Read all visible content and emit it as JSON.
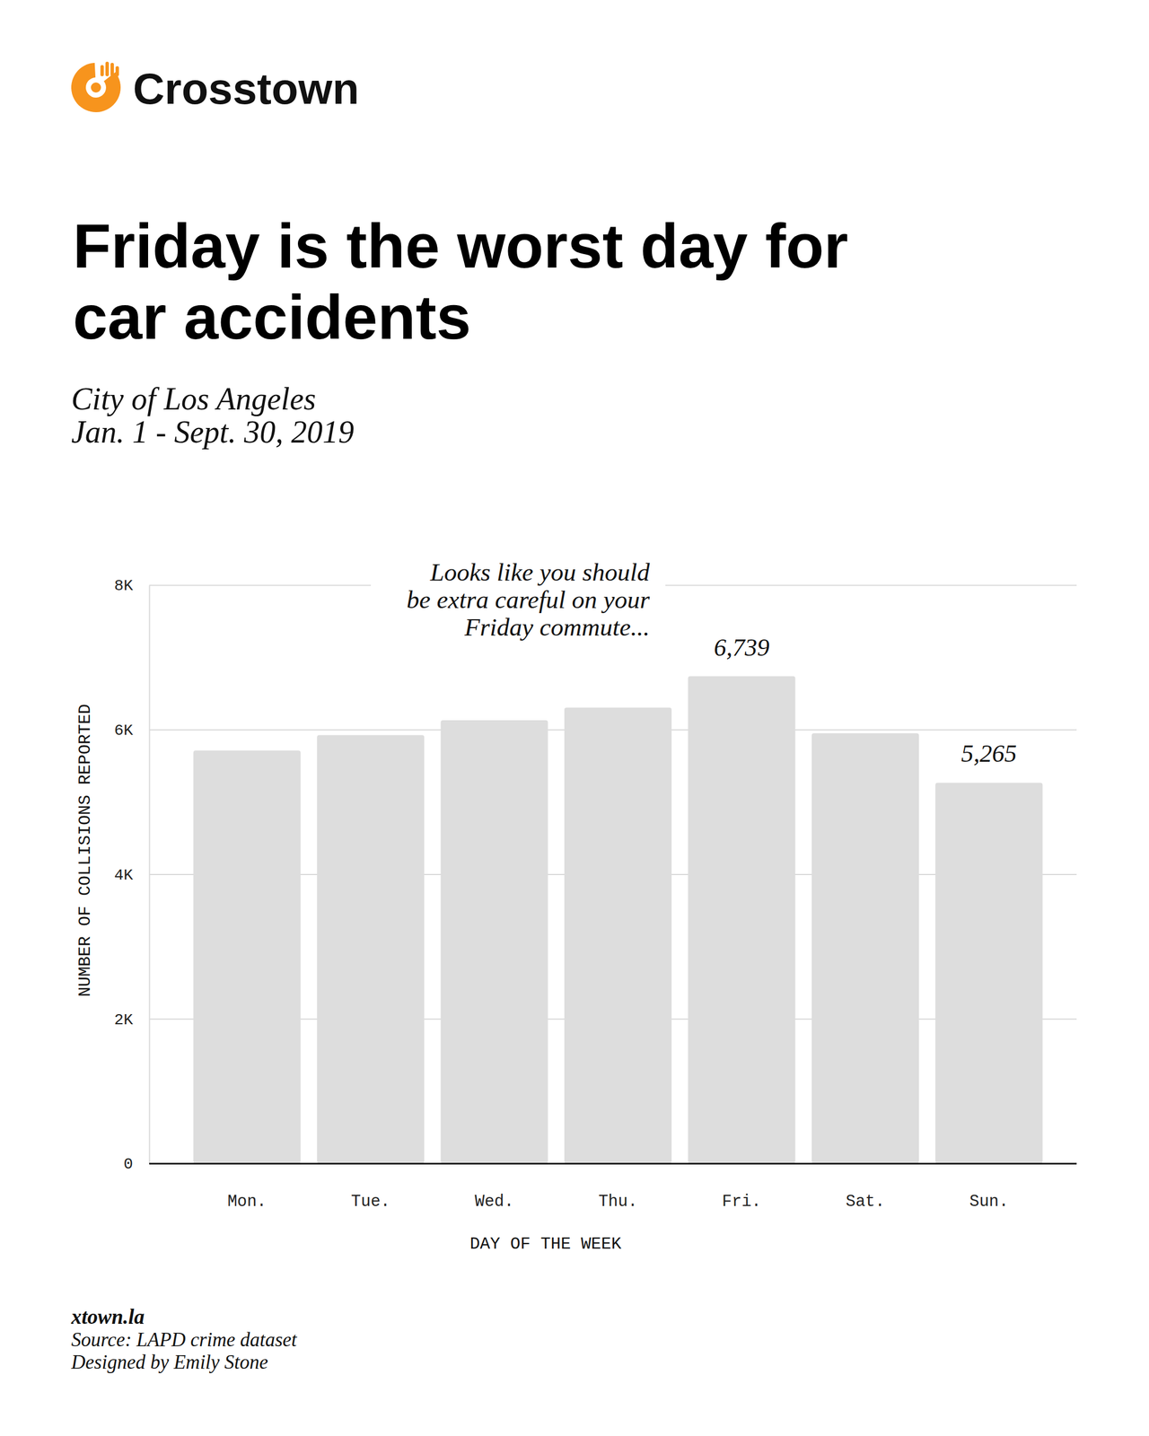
{
  "brand": "Crosstown",
  "chart_data": {
    "type": "bar",
    "title": [
      "Friday is the worst day for",
      "car accidents"
    ],
    "subtitle": [
      "City of Los Angeles",
      "Jan. 1 - Sept. 30, 2019"
    ],
    "annotation": [
      "Looks like you should",
      "be extra careful on your",
      "Friday commute..."
    ],
    "x_label": "DAY OF THE WEEK",
    "y_label": "NUMBER OF COLLISIONS REPORTED",
    "categories": [
      "Mon.",
      "Tue.",
      "Wed.",
      "Thu.",
      "Fri.",
      "Sat.",
      "Sun."
    ],
    "values": [
      5710,
      5925,
      6130,
      6305,
      6739,
      5950,
      5265
    ],
    "value_labels": [
      null,
      null,
      null,
      null,
      "6,739",
      null,
      "5,265"
    ],
    "color": "#dddddd",
    "ylim": [
      0,
      8000
    ],
    "yticks": [
      0,
      {
        "value": 2000,
        "label": "2K"
      },
      {
        "value": 4000,
        "label": "4K"
      },
      {
        "value": 6000,
        "label": "6K"
      },
      {
        "value": 8000,
        "label": "8K"
      }
    ],
    "grid": true
  },
  "footer": {
    "site": "xtown.la",
    "source": "Source: LAPD crime dataset",
    "credit": "Designed by Emily Stone"
  }
}
